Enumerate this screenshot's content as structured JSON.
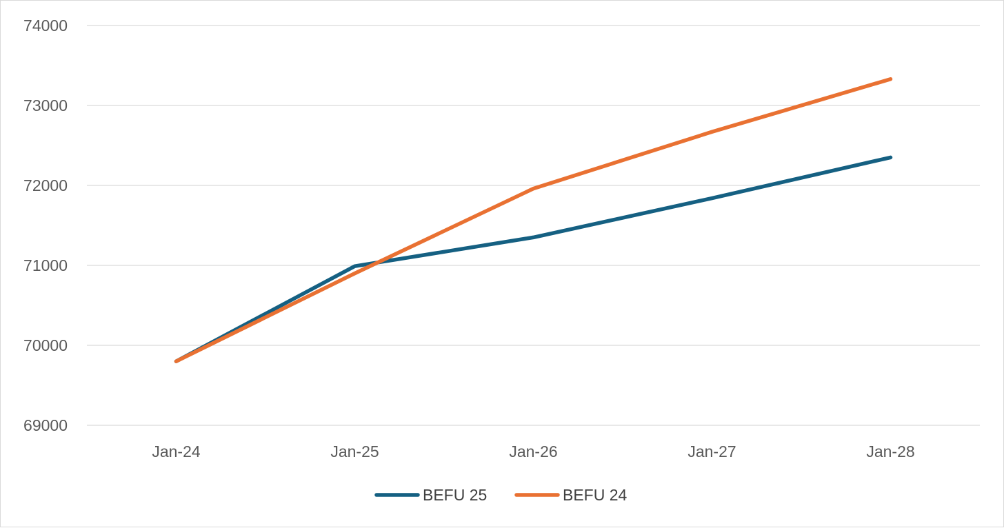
{
  "chart_data": {
    "type": "line",
    "title": "",
    "xlabel": "",
    "ylabel": "",
    "categories": [
      "Jan-24",
      "Jan-25",
      "Jan-26",
      "Jan-27",
      "Jan-28"
    ],
    "ylim": [
      69000,
      74000
    ],
    "yticks": [
      69000,
      70000,
      71000,
      72000,
      73000,
      74000
    ],
    "ytick_labels": [
      "69000",
      "70000",
      "71000",
      "72000",
      "73000",
      "74000"
    ],
    "grid": true,
    "legend_position": "bottom",
    "series": [
      {
        "name": "BEFU 25",
        "color": "#156082",
        "values": [
          69800,
          70990,
          71350,
          71840,
          72350
        ]
      },
      {
        "name": "BEFU 24",
        "color": "#E97132",
        "values": [
          69800,
          70900,
          71960,
          72670,
          73330
        ]
      }
    ]
  }
}
